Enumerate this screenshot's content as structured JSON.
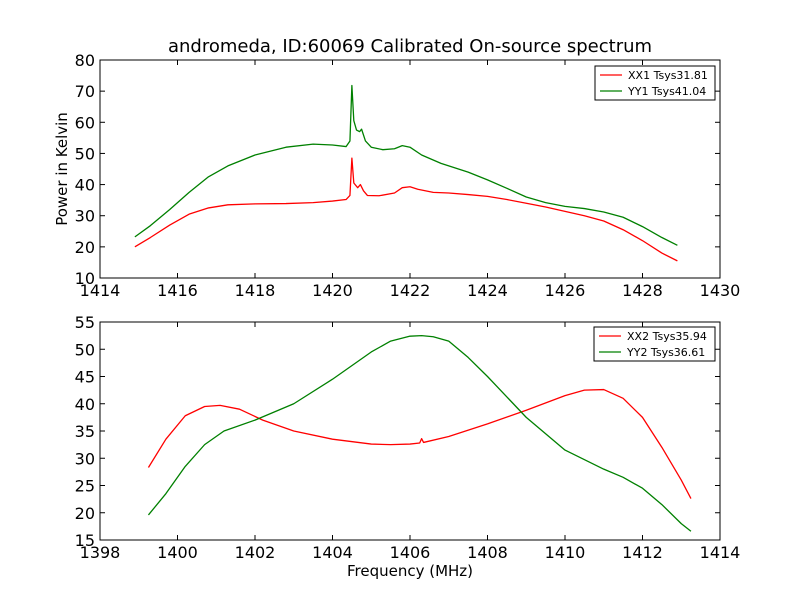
{
  "chart_data": [
    {
      "type": "line",
      "title": "andromeda, ID:60069 Calibrated On-source spectrum",
      "xlabel": "",
      "ylabel": "Power in Kelvin",
      "xlim": [
        1414,
        1430
      ],
      "ylim": [
        10,
        80
      ],
      "xticks": [
        "1414",
        "1416",
        "1418",
        "1420",
        "1422",
        "1424",
        "1426",
        "1428",
        "1430"
      ],
      "yticks": [
        "10",
        "20",
        "30",
        "40",
        "50",
        "60",
        "70",
        "80"
      ],
      "grid": false,
      "legend_position": "top-right",
      "series": [
        {
          "name": "XX1 Tsys31.81",
          "color": "#ff0000",
          "points": [
            [
              1414.9,
              20.0
            ],
            [
              1415.3,
              23.0
            ],
            [
              1415.8,
              27.0
            ],
            [
              1416.3,
              30.5
            ],
            [
              1416.8,
              32.5
            ],
            [
              1417.3,
              33.5
            ],
            [
              1418.0,
              33.8
            ],
            [
              1418.8,
              33.9
            ],
            [
              1419.5,
              34.2
            ],
            [
              1420.0,
              34.7
            ],
            [
              1420.35,
              35.2
            ],
            [
              1420.45,
              36.5
            ],
            [
              1420.5,
              48.5
            ],
            [
              1420.55,
              40.5
            ],
            [
              1420.65,
              39.0
            ],
            [
              1420.72,
              40.0
            ],
            [
              1420.8,
              38.0
            ],
            [
              1420.9,
              36.5
            ],
            [
              1421.2,
              36.4
            ],
            [
              1421.6,
              37.3
            ],
            [
              1421.8,
              39.0
            ],
            [
              1422.0,
              39.3
            ],
            [
              1422.2,
              38.5
            ],
            [
              1422.6,
              37.5
            ],
            [
              1423.0,
              37.3
            ],
            [
              1423.5,
              36.8
            ],
            [
              1424.0,
              36.2
            ],
            [
              1424.5,
              35.2
            ],
            [
              1425.0,
              34.0
            ],
            [
              1425.5,
              32.8
            ],
            [
              1426.0,
              31.4
            ],
            [
              1426.5,
              30.0
            ],
            [
              1427.0,
              28.3
            ],
            [
              1427.5,
              25.5
            ],
            [
              1428.0,
              22.0
            ],
            [
              1428.5,
              18.0
            ],
            [
              1428.9,
              15.5
            ]
          ]
        },
        {
          "name": "YY1 Tsys41.04",
          "color": "#008000",
          "points": [
            [
              1414.9,
              23.2
            ],
            [
              1415.3,
              26.8
            ],
            [
              1415.8,
              32.0
            ],
            [
              1416.3,
              37.5
            ],
            [
              1416.8,
              42.5
            ],
            [
              1417.3,
              46.0
            ],
            [
              1418.0,
              49.5
            ],
            [
              1418.8,
              52.0
            ],
            [
              1419.5,
              53.0
            ],
            [
              1420.0,
              52.7
            ],
            [
              1420.35,
              52.2
            ],
            [
              1420.45,
              54.0
            ],
            [
              1420.5,
              71.8
            ],
            [
              1420.55,
              60.5
            ],
            [
              1420.62,
              57.5
            ],
            [
              1420.7,
              57.0
            ],
            [
              1420.75,
              57.8
            ],
            [
              1420.85,
              54.0
            ],
            [
              1421.0,
              52.0
            ],
            [
              1421.3,
              51.2
            ],
            [
              1421.6,
              51.5
            ],
            [
              1421.8,
              52.5
            ],
            [
              1422.0,
              52.0
            ],
            [
              1422.3,
              49.5
            ],
            [
              1422.8,
              46.8
            ],
            [
              1423.5,
              44.0
            ],
            [
              1424.0,
              41.5
            ],
            [
              1424.5,
              38.8
            ],
            [
              1425.0,
              36.0
            ],
            [
              1425.5,
              34.2
            ],
            [
              1426.0,
              33.0
            ],
            [
              1426.5,
              32.3
            ],
            [
              1427.0,
              31.2
            ],
            [
              1427.5,
              29.5
            ],
            [
              1428.0,
              26.5
            ],
            [
              1428.5,
              23.0
            ],
            [
              1428.9,
              20.5
            ]
          ]
        }
      ]
    },
    {
      "type": "line",
      "title": "",
      "xlabel": "Frequency (MHz)",
      "ylabel": "",
      "xlim": [
        1398,
        1414
      ],
      "ylim": [
        15,
        55
      ],
      "xticks": [
        "1398",
        "1400",
        "1402",
        "1404",
        "1406",
        "1408",
        "1410",
        "1412",
        "1414"
      ],
      "yticks": [
        "15",
        "20",
        "25",
        "30",
        "35",
        "40",
        "45",
        "50",
        "55"
      ],
      "grid": false,
      "legend_position": "top-right",
      "series": [
        {
          "name": "XX2 Tsys35.94",
          "color": "#ff0000",
          "points": [
            [
              1399.25,
              28.3
            ],
            [
              1399.7,
              33.5
            ],
            [
              1400.2,
              37.8
            ],
            [
              1400.7,
              39.5
            ],
            [
              1401.1,
              39.7
            ],
            [
              1401.6,
              39.0
            ],
            [
              1402.2,
              37.0
            ],
            [
              1403.0,
              35.0
            ],
            [
              1404.0,
              33.5
            ],
            [
              1405.0,
              32.6
            ],
            [
              1405.5,
              32.5
            ],
            [
              1406.0,
              32.6
            ],
            [
              1406.25,
              32.8
            ],
            [
              1406.3,
              33.6
            ],
            [
              1406.35,
              32.9
            ],
            [
              1407.0,
              34.0
            ],
            [
              1408.0,
              36.3
            ],
            [
              1409.0,
              38.8
            ],
            [
              1410.0,
              41.5
            ],
            [
              1410.5,
              42.5
            ],
            [
              1411.0,
              42.6
            ],
            [
              1411.5,
              41.0
            ],
            [
              1412.0,
              37.5
            ],
            [
              1412.5,
              32.0
            ],
            [
              1413.0,
              26.0
            ],
            [
              1413.25,
              22.6
            ]
          ]
        },
        {
          "name": "YY2 Tsys36.61",
          "color": "#008000",
          "points": [
            [
              1399.25,
              19.6
            ],
            [
              1399.7,
              23.5
            ],
            [
              1400.2,
              28.5
            ],
            [
              1400.7,
              32.5
            ],
            [
              1401.2,
              35.0
            ],
            [
              1402.0,
              37.0
            ],
            [
              1403.0,
              40.0
            ],
            [
              1404.0,
              44.5
            ],
            [
              1405.0,
              49.5
            ],
            [
              1405.5,
              51.5
            ],
            [
              1406.0,
              52.4
            ],
            [
              1406.3,
              52.5
            ],
            [
              1406.6,
              52.3
            ],
            [
              1407.0,
              51.5
            ],
            [
              1407.5,
              48.5
            ],
            [
              1408.0,
              45.0
            ],
            [
              1409.0,
              37.5
            ],
            [
              1410.0,
              31.5
            ],
            [
              1411.0,
              28.0
            ],
            [
              1411.5,
              26.5
            ],
            [
              1412.0,
              24.5
            ],
            [
              1412.5,
              21.5
            ],
            [
              1413.0,
              18.0
            ],
            [
              1413.25,
              16.6
            ]
          ]
        }
      ]
    }
  ]
}
